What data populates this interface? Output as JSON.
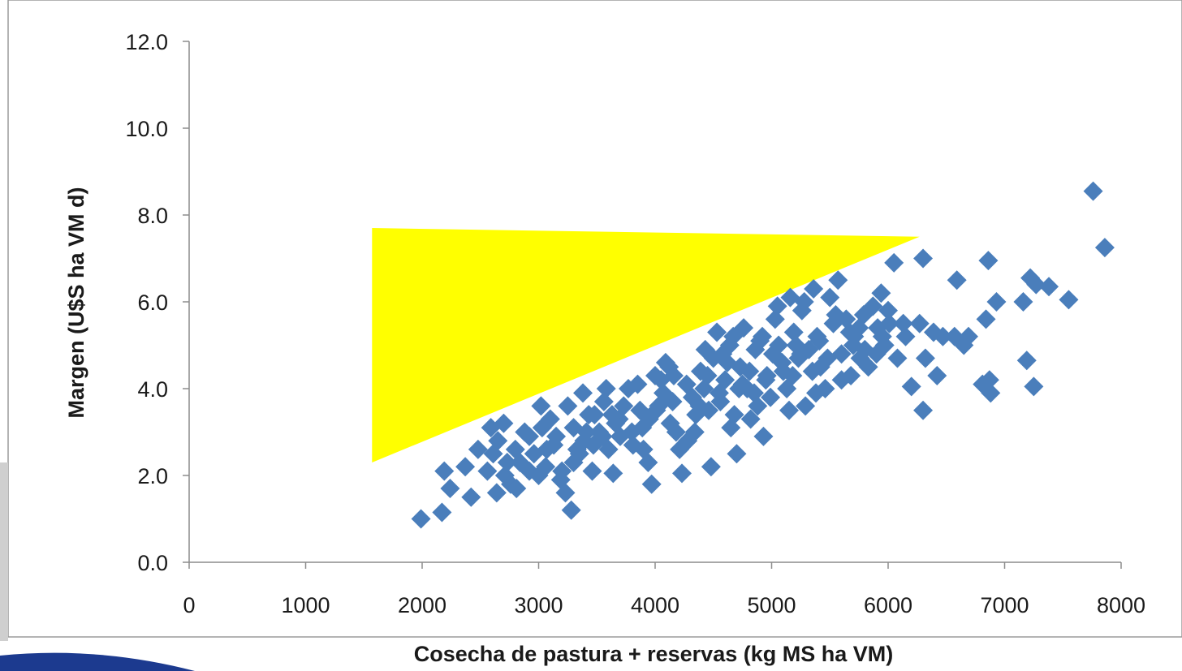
{
  "chart_data": {
    "type": "scatter",
    "title": "",
    "xlabel": "Cosecha de pastura + reservas  (kg MS ha VM)",
    "ylabel": "Margen (U$S ha VM d)",
    "xlim": [
      0,
      8000
    ],
    "ylim": [
      0,
      12
    ],
    "x_ticks": [
      "0",
      "1000",
      "2000",
      "3000",
      "4000",
      "5000",
      "6000",
      "7000",
      "8000"
    ],
    "y_ticks": [
      "0.0",
      "2.0",
      "4.0",
      "6.0",
      "8.0",
      "10.0",
      "12.0"
    ],
    "grid": false,
    "legend": "none",
    "marker": "diamond",
    "series_color": "#4a7ebb",
    "highlight": {
      "shape": "triangle",
      "color": "#ffff00",
      "vertices": [
        [
          1570,
          7.7
        ],
        [
          6270,
          7.5
        ],
        [
          1570,
          2.3
        ]
      ]
    },
    "points": [
      [
        1990,
        1.0
      ],
      [
        2170,
        1.15
      ],
      [
        2190,
        2.1
      ],
      [
        2240,
        1.7
      ],
      [
        2370,
        2.2
      ],
      [
        2420,
        1.5
      ],
      [
        2480,
        2.6
      ],
      [
        2590,
        3.1
      ],
      [
        2610,
        2.5
      ],
      [
        2640,
        1.6
      ],
      [
        2700,
        3.2
      ],
      [
        2710,
        2.0
      ],
      [
        2760,
        1.8
      ],
      [
        2800,
        2.6
      ],
      [
        2840,
        2.3
      ],
      [
        2880,
        3.0
      ],
      [
        2920,
        2.1
      ],
      [
        2960,
        2.5
      ],
      [
        3020,
        3.6
      ],
      [
        3060,
        2.2
      ],
      [
        3100,
        3.3
      ],
      [
        3130,
        2.7
      ],
      [
        3190,
        1.9
      ],
      [
        3230,
        1.6
      ],
      [
        3280,
        1.2
      ],
      [
        3300,
        3.1
      ],
      [
        3350,
        2.5
      ],
      [
        3390,
        2.8
      ],
      [
        3430,
        3.4
      ],
      [
        3470,
        2.7
      ],
      [
        3520,
        3.0
      ],
      [
        3560,
        3.7
      ],
      [
        3600,
        2.6
      ],
      [
        3640,
        2.05
      ],
      [
        3690,
        3.3
      ],
      [
        3730,
        3.6
      ],
      [
        3770,
        4.0
      ],
      [
        3810,
        2.7
      ],
      [
        3850,
        4.1
      ],
      [
        3890,
        3.1
      ],
      [
        3940,
        2.3
      ],
      [
        3970,
        1.8
      ],
      [
        4010,
        3.5
      ],
      [
        4050,
        4.2
      ],
      [
        4090,
        4.6
      ],
      [
        4130,
        3.2
      ],
      [
        4160,
        4.3
      ],
      [
        4210,
        2.6
      ],
      [
        4230,
        2.05
      ],
      [
        4280,
        2.8
      ],
      [
        4320,
        3.8
      ],
      [
        4350,
        3.4
      ],
      [
        4390,
        4.4
      ],
      [
        4420,
        4.0
      ],
      [
        4480,
        2.2
      ],
      [
        4500,
        4.7
      ],
      [
        4530,
        5.3
      ],
      [
        4560,
        3.7
      ],
      [
        4600,
        4.2
      ],
      [
        4640,
        5.0
      ],
      [
        4680,
        3.4
      ],
      [
        4700,
        2.5
      ],
      [
        4730,
        4.5
      ],
      [
        4760,
        5.4
      ],
      [
        4790,
        4.0
      ],
      [
        4820,
        3.3
      ],
      [
        4860,
        4.9
      ],
      [
        4900,
        5.1
      ],
      [
        4930,
        2.9
      ],
      [
        4960,
        4.3
      ],
      [
        4990,
        3.8
      ],
      [
        5030,
        5.6
      ],
      [
        5060,
        5.0
      ],
      [
        5090,
        4.6
      ],
      [
        5130,
        4.0
      ],
      [
        5160,
        6.1
      ],
      [
        5190,
        5.3
      ],
      [
        5230,
        4.7
      ],
      [
        5260,
        5.8
      ],
      [
        5290,
        3.6
      ],
      [
        5320,
        4.9
      ],
      [
        5360,
        6.3
      ],
      [
        5390,
        5.2
      ],
      [
        5420,
        4.5
      ],
      [
        5460,
        4.0
      ],
      [
        5500,
        6.1
      ],
      [
        5530,
        5.5
      ],
      [
        5570,
        6.5
      ],
      [
        5600,
        4.8
      ],
      [
        5640,
        5.6
      ],
      [
        5680,
        4.3
      ],
      [
        5710,
        5.2
      ],
      [
        5760,
        4.7
      ],
      [
        5790,
        5.7
      ],
      [
        5830,
        4.5
      ],
      [
        5870,
        5.9
      ],
      [
        5910,
        5.4
      ],
      [
        5940,
        6.2
      ],
      [
        5970,
        5.0
      ],
      [
        6010,
        5.5
      ],
      [
        6050,
        6.9
      ],
      [
        6080,
        4.7
      ],
      [
        6130,
        5.5
      ],
      [
        6200,
        4.05
      ],
      [
        6270,
        5.5
      ],
      [
        6300,
        7.0
      ],
      [
        6300,
        3.5
      ],
      [
        6320,
        4.7
      ],
      [
        6390,
        5.3
      ],
      [
        6420,
        4.3
      ],
      [
        6470,
        5.2
      ],
      [
        6570,
        5.2
      ],
      [
        6590,
        6.5
      ],
      [
        6650,
        5.0
      ],
      [
        6690,
        5.2
      ],
      [
        6810,
        4.1
      ],
      [
        6840,
        5.6
      ],
      [
        6860,
        6.95
      ],
      [
        6870,
        4.2
      ],
      [
        6880,
        3.9
      ],
      [
        6930,
        6.0
      ],
      [
        7160,
        6.0
      ],
      [
        7190,
        4.65
      ],
      [
        7220,
        6.55
      ],
      [
        7250,
        4.05
      ],
      [
        7270,
        6.4
      ],
      [
        7380,
        6.35
      ],
      [
        7550,
        6.05
      ],
      [
        7760,
        8.55
      ],
      [
        7860,
        7.25
      ],
      [
        3150,
        2.9
      ],
      [
        3410,
        3.0
      ],
      [
        3660,
        3.2
      ],
      [
        3870,
        3.5
      ],
      [
        4070,
        3.9
      ],
      [
        4270,
        4.1
      ],
      [
        4450,
        4.3
      ],
      [
        4620,
        4.6
      ],
      [
        4810,
        4.4
      ],
      [
        5010,
        4.8
      ],
      [
        5210,
        5.0
      ],
      [
        5410,
        5.1
      ],
      [
        3550,
        2.9
      ],
      [
        3950,
        3.3
      ],
      [
        4150,
        3.7
      ],
      [
        4550,
        3.9
      ],
      [
        4750,
        4.1
      ],
      [
        4950,
        4.2
      ],
      [
        2920,
        2.9
      ],
      [
        3070,
        2.6
      ],
      [
        3250,
        3.6
      ],
      [
        3480,
        3.4
      ],
      [
        3700,
        2.9
      ],
      [
        4000,
        4.3
      ],
      [
        4340,
        3.0
      ],
      [
        4650,
        3.1
      ],
      [
        4880,
        3.6
      ],
      [
        5150,
        3.5
      ],
      [
        5380,
        3.9
      ],
      [
        5600,
        4.2
      ],
      [
        5800,
        4.9
      ],
      [
        5350,
        4.4
      ],
      [
        5100,
        4.4
      ],
      [
        4460,
        3.5
      ],
      [
        3300,
        2.3
      ],
      [
        2560,
        2.1
      ],
      [
        2810,
        1.7
      ],
      [
        3000,
        2.0
      ],
      [
        3200,
        2.1
      ],
      [
        3380,
        3.9
      ],
      [
        3580,
        4.0
      ],
      [
        3800,
        3.0
      ],
      [
        4180,
        3.0
      ],
      [
        4380,
        3.6
      ],
      [
        4580,
        4.8
      ],
      [
        4720,
        4.0
      ],
      [
        4920,
        5.2
      ],
      [
        5180,
        4.3
      ],
      [
        5480,
        4.7
      ],
      [
        5700,
        5.0
      ],
      [
        5900,
        4.8
      ],
      [
        6000,
        5.8
      ],
      [
        5670,
        5.3
      ],
      [
        5250,
        4.8
      ],
      [
        4850,
        3.9
      ],
      [
        4430,
        4.9
      ],
      [
        4030,
        3.6
      ],
      [
        3630,
        3.4
      ],
      [
        3330,
        2.6
      ],
      [
        3030,
        3.1
      ],
      [
        2730,
        2.3
      ],
      [
        2650,
        2.8
      ],
      [
        3460,
        2.1
      ],
      [
        3900,
        2.6
      ],
      [
        4120,
        4.5
      ],
      [
        4670,
        5.2
      ],
      [
        5050,
        5.9
      ],
      [
        5280,
        6.0
      ],
      [
        5550,
        5.7
      ],
      [
        5750,
        5.4
      ],
      [
        5950,
        5.2
      ],
      [
        6150,
        5.2
      ]
    ]
  }
}
